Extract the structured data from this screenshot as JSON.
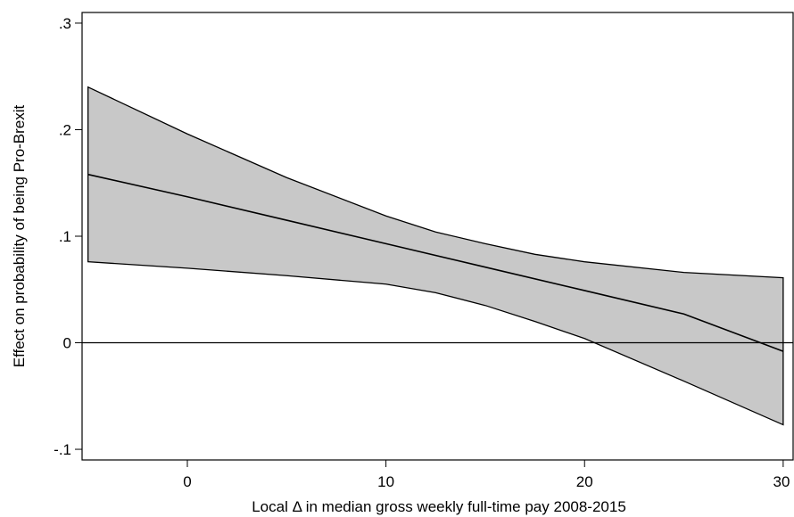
{
  "chart_data": {
    "type": "area",
    "xlabel": "Local Δ in median gross weekly full-time pay 2008-2015",
    "ylabel": "Effect on probability of being Pro-Brexit",
    "xlim": [
      -5.3,
      30.5
    ],
    "ylim": [
      -0.11,
      0.31
    ],
    "x_ticks": [
      {
        "value": 0,
        "label": "0"
      },
      {
        "value": 10,
        "label": "10"
      },
      {
        "value": 20,
        "label": "20"
      },
      {
        "value": 30,
        "label": "30"
      }
    ],
    "y_ticks": [
      {
        "value": -0.1,
        "label": "-.1"
      },
      {
        "value": 0,
        "label": "0"
      },
      {
        "value": 0.1,
        "label": ".1"
      },
      {
        "value": 0.2,
        "label": ".2"
      },
      {
        "value": 0.3,
        "label": ".3"
      }
    ],
    "reference_line_y": 0,
    "grid": false,
    "band_color": "#c8c8c8",
    "series": [
      {
        "role": "estimate",
        "x": [
          -5,
          0,
          5,
          10,
          15,
          20,
          25,
          30
        ],
        "y": [
          0.158,
          0.137,
          0.115,
          0.093,
          0.071,
          0.049,
          0.027,
          -0.008
        ]
      },
      {
        "role": "upper_ci",
        "x": [
          -5,
          0,
          5,
          10,
          12.5,
          15,
          17.5,
          20,
          25,
          30
        ],
        "y": [
          0.24,
          0.196,
          0.155,
          0.119,
          0.104,
          0.093,
          0.083,
          0.076,
          0.066,
          0.061
        ]
      },
      {
        "role": "lower_ci",
        "x": [
          -5,
          0,
          5,
          10,
          12.5,
          15,
          17.5,
          20,
          25,
          30
        ],
        "y": [
          0.076,
          0.07,
          0.063,
          0.055,
          0.047,
          0.035,
          0.02,
          0.004,
          -0.036,
          -0.077
        ]
      }
    ]
  }
}
